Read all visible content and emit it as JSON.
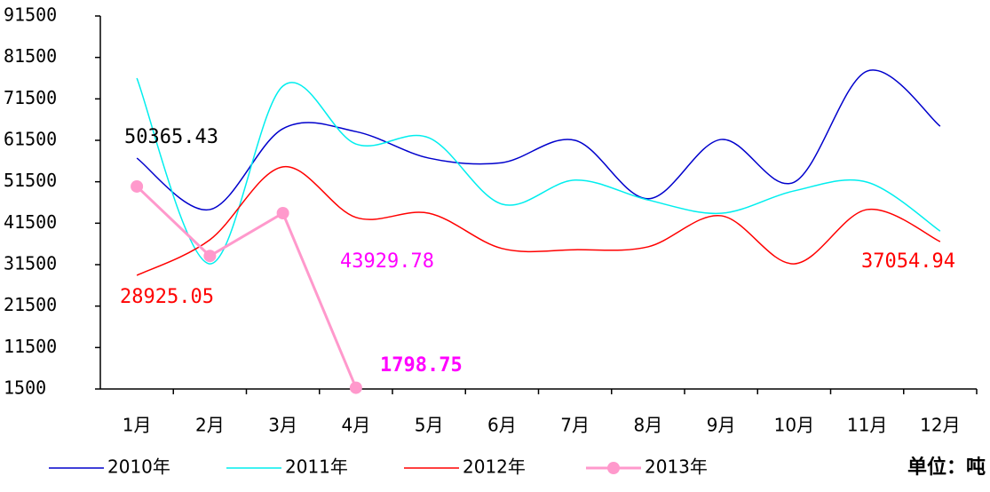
{
  "chart_data": {
    "type": "line",
    "categories": [
      "1月",
      "2月",
      "3月",
      "4月",
      "5月",
      "6月",
      "7月",
      "8月",
      "9月",
      "10月",
      "11月",
      "12月"
    ],
    "series": [
      {
        "name": "2010年",
        "color": "#0000cc",
        "smooth": true,
        "values": [
          57200,
          44800,
          64300,
          63600,
          57200,
          56100,
          61500,
          47400,
          61700,
          51400,
          78200,
          64900
        ]
      },
      {
        "name": "2011年",
        "color": "#00eeee",
        "smooth": true,
        "values": [
          76500,
          31700,
          74600,
          60600,
          62100,
          46100,
          51900,
          47100,
          43900,
          49300,
          51400,
          39600
        ]
      },
      {
        "name": "2012年",
        "color": "#ff0000",
        "smooth": true,
        "values": [
          28925.05,
          37500,
          55100,
          42900,
          43900,
          35400,
          35100,
          35800,
          43300,
          31700,
          44800,
          37054.94
        ]
      },
      {
        "name": "2013年",
        "color": "#ff99cc",
        "smooth": false,
        "marker": true,
        "values": [
          50365.43,
          33600,
          43929.78,
          1798.75,
          null,
          null,
          null,
          null,
          null,
          null,
          null,
          null
        ]
      }
    ],
    "ylim": [
      1500,
      91500
    ],
    "yticks": [
      1500,
      11500,
      21500,
      31500,
      41500,
      51500,
      61500,
      71500,
      81500,
      91500
    ],
    "unit_label": "单位：吨",
    "legend": "bottom"
  }
}
